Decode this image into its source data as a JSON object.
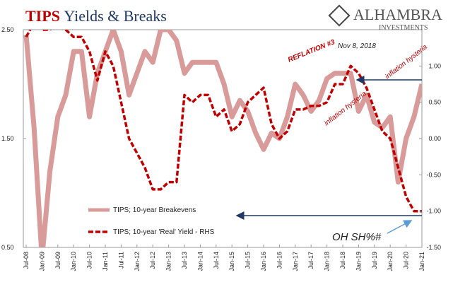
{
  "chart_data": {
    "type": "line",
    "title": {
      "highlight": "TIPS",
      "rest": "Yields & Breaks"
    },
    "logo": {
      "name": "ALHAMBRA",
      "sub": "INVESTMENTS"
    },
    "annotations": {
      "reflation": "REFLATION #3",
      "date": "Nov 8, 2018",
      "hysteria1": "inflation hysteria",
      "hysteria2": "inflation hysteria",
      "oh": "OH SH%#"
    },
    "x": [
      "Jul-08",
      "Oct-08",
      "Jan-09",
      "Apr-09",
      "Jul-09",
      "Oct-09",
      "Jan-10",
      "Apr-10",
      "Jul-10",
      "Oct-10",
      "Jan-11",
      "Apr-11",
      "Jul-11",
      "Oct-11",
      "Jan-12",
      "Apr-12",
      "Jul-12",
      "Oct-12",
      "Jan-13",
      "Apr-13",
      "Jul-13",
      "Oct-13",
      "Jan-14",
      "Apr-14",
      "Jul-14",
      "Oct-14",
      "Jan-15",
      "Apr-15",
      "Jul-15",
      "Oct-15",
      "Jan-16",
      "Apr-16",
      "Jul-16",
      "Oct-16",
      "Jan-17",
      "Apr-17",
      "Jul-17",
      "Oct-17",
      "Jan-18",
      "Apr-18",
      "Jul-18",
      "Oct-18",
      "Jan-19",
      "Apr-19",
      "Jul-19",
      "Oct-19",
      "Jan-20",
      "Apr-20",
      "Jul-20",
      "Oct-20",
      "Jan-21"
    ],
    "xticks": [
      "Jul-08",
      "Jan-09",
      "Jul-09",
      "Jan-10",
      "Jul-10",
      "Jan-11",
      "Jul-11",
      "Jan-12",
      "Jul-12",
      "Jan-13",
      "Jul-13",
      "Jan-14",
      "Jul-14",
      "Jan-15",
      "Jul-15",
      "Jan-16",
      "Jul-16",
      "Jan-17",
      "Jul-17",
      "Jan-18",
      "Jul-18",
      "Jan-19",
      "Jul-19",
      "Jan-20",
      "Jul-20",
      "Jan-21"
    ],
    "series": [
      {
        "name": "TIPS; 10-year Breakevens",
        "color": "#d99a9a",
        "axis": "y",
        "values": [
          2.45,
          1.6,
          0.4,
          1.2,
          1.7,
          1.9,
          2.3,
          2.3,
          1.7,
          2.1,
          2.3,
          2.5,
          2.3,
          1.9,
          2.1,
          2.3,
          2.2,
          2.5,
          2.5,
          2.4,
          2.1,
          2.2,
          2.2,
          2.2,
          2.2,
          2.0,
          1.7,
          1.85,
          1.75,
          1.55,
          1.4,
          1.55,
          1.5,
          1.7,
          2.0,
          1.9,
          1.75,
          1.85,
          2.05,
          2.1,
          2.1,
          2.1,
          1.75,
          1.9,
          1.65,
          1.6,
          1.7,
          1.1,
          1.5,
          1.7,
          2.0
        ]
      },
      {
        "name": "TIPS; 10-year 'Real' Yield - RHS",
        "color": "#c00000",
        "axis": "y2",
        "values": [
          1.4,
          1.6,
          1.5,
          1.5,
          1.6,
          1.5,
          1.4,
          1.4,
          1.2,
          0.8,
          1.2,
          1.0,
          0.5,
          0.0,
          -0.2,
          -0.4,
          -0.7,
          -0.7,
          -0.6,
          -0.6,
          0.6,
          0.5,
          0.6,
          0.6,
          0.3,
          0.4,
          0.1,
          0.2,
          0.5,
          0.6,
          0.7,
          0.2,
          0.0,
          0.1,
          0.4,
          0.4,
          0.45,
          0.45,
          0.5,
          0.75,
          0.75,
          1.0,
          0.9,
          0.7,
          0.4,
          0.1,
          0.0,
          -0.4,
          -0.8,
          -1.0,
          -1.0
        ]
      }
    ],
    "ylim": [
      0.5,
      2.5
    ],
    "yticks": [
      {
        "value": 0.5,
        "label": "0.50"
      },
      {
        "value": 1.5,
        "label": "1.50"
      },
      {
        "value": 2.5,
        "label": "2.50"
      }
    ],
    "y2lim": [
      -1.5,
      1.5
    ],
    "y2ticks": [
      {
        "value": -1.5,
        "label": "-1.50"
      },
      {
        "value": -1.0,
        "label": "-1.00"
      },
      {
        "value": -0.5,
        "label": "-0.50"
      },
      {
        "value": 0,
        "label": "0.00"
      },
      {
        "value": 0.5,
        "label": "0.50"
      },
      {
        "value": 1.0,
        "label": "1.00"
      }
    ],
    "grid": false
  }
}
